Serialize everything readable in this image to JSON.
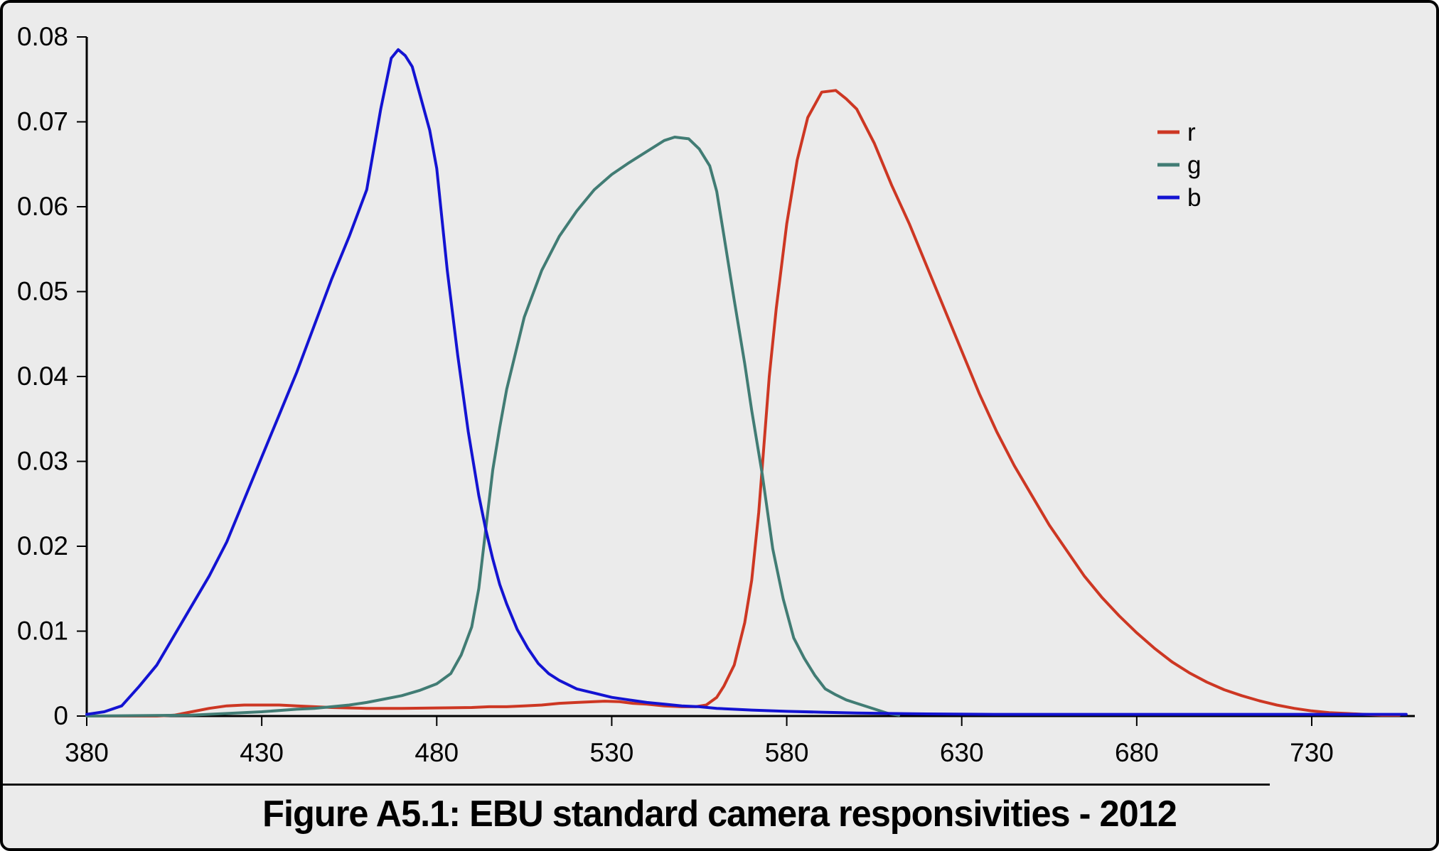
{
  "figure": {
    "caption": "Figure A5.1: EBU standard camera responsivities - 2012"
  },
  "colors": {
    "background": "#ebebeb",
    "axis": "#000000",
    "tick_label": "#000000",
    "r": "#cd3723",
    "g": "#417c74",
    "b": "#1313d2"
  },
  "chart_data": {
    "type": "line",
    "title": "Figure A5.1: EBU standard camera responsivities - 2012",
    "xlabel": "",
    "ylabel": "",
    "xlim": [
      380,
      760
    ],
    "ylim": [
      0,
      0.08
    ],
    "grid": false,
    "x_tick_labels": [
      "380",
      "430",
      "480",
      "530",
      "580",
      "630",
      "680",
      "730"
    ],
    "y_tick_labels": [
      "0",
      "0.01",
      "0.02",
      "0.03",
      "0.04",
      "0.05",
      "0.06",
      "0.07",
      "0.08"
    ],
    "legend": {
      "position": "upper right",
      "items": [
        "r",
        "g",
        "b"
      ]
    },
    "series": [
      {
        "name": "r",
        "color": "#cd3723",
        "x": [
          380,
          400,
          405,
          410,
          415,
          420,
          425,
          430,
          435,
          440,
          445,
          450,
          455,
          460,
          470,
          480,
          490,
          495,
          500,
          505,
          510,
          515,
          520,
          525,
          528,
          532,
          536,
          540,
          545,
          550,
          554,
          557,
          560,
          562,
          565,
          568,
          570,
          572,
          575,
          577,
          580,
          583,
          586,
          590,
          594,
          597,
          600,
          605,
          610,
          615,
          620,
          625,
          630,
          635,
          640,
          645,
          650,
          655,
          660,
          665,
          670,
          675,
          680,
          685,
          690,
          695,
          700,
          705,
          710,
          715,
          720,
          725,
          730,
          735,
          740,
          745,
          750,
          755
        ],
        "values": [
          0,
          0,
          0.0001,
          0.0005,
          0.0009,
          0.0012,
          0.0013,
          0.0013,
          0.0013,
          0.0012,
          0.0011,
          0.001,
          0.00095,
          0.0009,
          0.0009,
          0.00095,
          0.001,
          0.0011,
          0.0011,
          0.0012,
          0.0013,
          0.0015,
          0.0016,
          0.0017,
          0.00175,
          0.0017,
          0.0015,
          0.0014,
          0.0012,
          0.0011,
          0.0011,
          0.0013,
          0.0022,
          0.0035,
          0.006,
          0.011,
          0.016,
          0.024,
          0.04,
          0.048,
          0.058,
          0.0655,
          0.0705,
          0.0735,
          0.0737,
          0.0727,
          0.0715,
          0.0675,
          0.0625,
          0.058,
          0.053,
          0.048,
          0.043,
          0.038,
          0.0335,
          0.0295,
          0.026,
          0.0225,
          0.0195,
          0.0165,
          0.014,
          0.0118,
          0.0098,
          0.008,
          0.0064,
          0.0051,
          0.004,
          0.0031,
          0.0024,
          0.0018,
          0.0013,
          0.0009,
          0.0006,
          0.0004,
          0.0003,
          0.0002,
          0.0001,
          0.0001
        ]
      },
      {
        "name": "g",
        "color": "#417c74",
        "x": [
          380,
          410,
          420,
          430,
          440,
          445,
          450,
          455,
          460,
          465,
          470,
          475,
          480,
          484,
          487,
          490,
          492,
          494,
          496,
          498,
          500,
          505,
          510,
          515,
          520,
          525,
          530,
          535,
          540,
          545,
          548,
          552,
          555,
          558,
          560,
          562,
          565,
          568,
          570,
          573,
          576,
          579,
          582,
          585,
          588,
          591,
          594,
          597,
          600,
          603,
          606,
          609,
          612
        ],
        "values": [
          0,
          0.0001,
          0.0003,
          0.0005,
          0.0008,
          0.0009,
          0.0011,
          0.0013,
          0.0016,
          0.002,
          0.0024,
          0.003,
          0.0038,
          0.005,
          0.0072,
          0.0105,
          0.015,
          0.022,
          0.029,
          0.034,
          0.0385,
          0.047,
          0.0525,
          0.0565,
          0.0595,
          0.062,
          0.0638,
          0.0652,
          0.0665,
          0.0678,
          0.0682,
          0.068,
          0.0668,
          0.0648,
          0.0618,
          0.0567,
          0.049,
          0.0415,
          0.036,
          0.0285,
          0.0197,
          0.0138,
          0.0092,
          0.0068,
          0.0048,
          0.0032,
          0.0025,
          0.0019,
          0.0015,
          0.0011,
          0.0007,
          0.0003,
          0.0001
        ]
      },
      {
        "name": "b",
        "color": "#1313d2",
        "x": [
          380,
          385,
          390,
          395,
          400,
          405,
          410,
          415,
          420,
          425,
          430,
          435,
          440,
          445,
          450,
          455,
          460,
          464,
          467,
          469,
          471,
          473,
          475,
          478,
          480,
          483,
          486,
          489,
          492,
          494,
          496,
          498,
          500,
          503,
          506,
          509,
          512,
          515,
          520,
          525,
          530,
          535,
          540,
          545,
          550,
          555,
          560,
          570,
          580,
          590,
          600,
          620,
          640,
          660,
          680,
          700,
          720,
          740,
          757
        ],
        "values": [
          0.0002,
          0.0005,
          0.0012,
          0.0035,
          0.006,
          0.0095,
          0.013,
          0.0165,
          0.0205,
          0.0255,
          0.0305,
          0.0355,
          0.0405,
          0.046,
          0.0515,
          0.0565,
          0.062,
          0.0715,
          0.0775,
          0.0785,
          0.0778,
          0.0765,
          0.0735,
          0.069,
          0.0645,
          0.0525,
          0.0425,
          0.0335,
          0.026,
          0.022,
          0.0185,
          0.0155,
          0.0132,
          0.0102,
          0.008,
          0.0062,
          0.005,
          0.0042,
          0.0032,
          0.0027,
          0.0022,
          0.0019,
          0.0016,
          0.0014,
          0.0012,
          0.0011,
          0.0009,
          0.0007,
          0.00055,
          0.00045,
          0.00035,
          0.00025,
          0.0002,
          0.0002,
          0.0002,
          0.0002,
          0.0002,
          0.0002,
          0.0002
        ]
      }
    ]
  }
}
